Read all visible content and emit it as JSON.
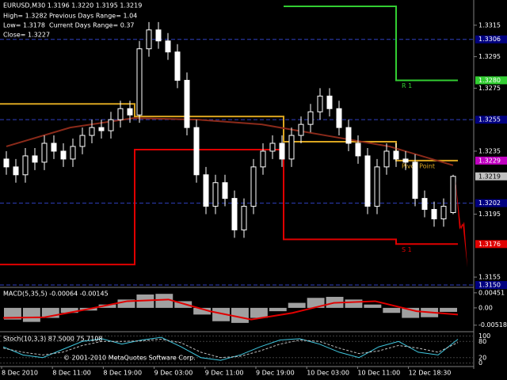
{
  "chart_data": {
    "type": "candlestick",
    "symbol_header": "EURUSD,M30  1.3196 1.3220 1.3195 1.3219",
    "info": [
      "High= 1.3282",
      "Low= 1.3178",
      "Close= 1.3227"
    ],
    "info_right": [
      "Previous Days Range= 1.04",
      "Current Days Range= 0.37"
    ],
    "open": [
      1.323,
      1.3225,
      1.322,
      1.3232,
      1.3228,
      1.324,
      1.3235,
      1.323,
      1.3238,
      1.3245,
      1.325,
      1.3248,
      1.3255,
      1.3262,
      1.3258,
      1.33,
      1.3312,
      1.3305,
      1.3298,
      1.328,
      1.325,
      1.322,
      1.32,
      1.3215,
      1.3205,
      1.3185,
      1.32,
      1.3225,
      1.3235,
      1.324,
      1.323,
      1.3245,
      1.3252,
      1.326,
      1.327,
      1.3262,
      1.325,
      1.324,
      1.3232,
      1.32,
      1.3225,
      1.3235,
      1.323,
      1.3228,
      1.3205,
      1.3198,
      1.3192,
      1.3196
    ],
    "high": [
      1.3235,
      1.323,
      1.3237,
      1.3237,
      1.3245,
      1.3245,
      1.324,
      1.3243,
      1.325,
      1.3255,
      1.3255,
      1.326,
      1.3267,
      1.3267,
      1.3305,
      1.3317,
      1.3317,
      1.331,
      1.3303,
      1.3285,
      1.3255,
      1.3225,
      1.322,
      1.322,
      1.321,
      1.3205,
      1.323,
      1.324,
      1.3245,
      1.3245,
      1.325,
      1.3257,
      1.3265,
      1.3275,
      1.3275,
      1.3267,
      1.3255,
      1.3245,
      1.3237,
      1.323,
      1.324,
      1.324,
      1.3235,
      1.3233,
      1.321,
      1.3203,
      1.3205,
      1.322
    ],
    "low": [
      1.322,
      1.3215,
      1.3215,
      1.3223,
      1.3223,
      1.323,
      1.3225,
      1.3225,
      1.3233,
      1.324,
      1.3243,
      1.3243,
      1.325,
      1.3253,
      1.3253,
      1.3295,
      1.33,
      1.3293,
      1.3275,
      1.3245,
      1.3215,
      1.3195,
      1.3195,
      1.32,
      1.318,
      1.318,
      1.3195,
      1.322,
      1.323,
      1.3225,
      1.3225,
      1.324,
      1.3247,
      1.3255,
      1.3257,
      1.3245,
      1.3235,
      1.3227,
      1.3195,
      1.3195,
      1.322,
      1.3225,
      1.3223,
      1.32,
      1.3193,
      1.3187,
      1.3187,
      1.3195
    ],
    "close": [
      1.3225,
      1.322,
      1.3232,
      1.3228,
      1.324,
      1.3235,
      1.323,
      1.3238,
      1.3245,
      1.325,
      1.3248,
      1.3255,
      1.3262,
      1.3258,
      1.33,
      1.3312,
      1.3305,
      1.3298,
      1.328,
      1.325,
      1.322,
      1.32,
      1.3215,
      1.3205,
      1.3185,
      1.32,
      1.3225,
      1.3235,
      1.324,
      1.323,
      1.3245,
      1.3252,
      1.326,
      1.327,
      1.3262,
      1.325,
      1.324,
      1.3232,
      1.32,
      1.3225,
      1.3235,
      1.323,
      1.3228,
      1.3205,
      1.3198,
      1.3192,
      1.32,
      1.3219
    ],
    "ma": {
      "color": "#8b2a1a",
      "values": [
        1.3238,
        1.325,
        1.3256,
        1.3255,
        1.3252,
        1.3245,
        1.3238,
        1.3226
      ]
    },
    "pivot_levels": [
      {
        "name": "R 1",
        "color": "#32cd32",
        "values": [
          null,
          null,
          1.3327,
          1.328
        ]
      },
      {
        "name": "Pivot Point",
        "color": "#daa520",
        "values": [
          1.3265,
          1.3257,
          1.3241,
          1.3229
        ]
      },
      {
        "name": "S 1",
        "color": "#e00000",
        "values": [
          1.3163,
          1.3236,
          1.3179,
          1.3176
        ]
      }
    ],
    "ylim": [
      1.3149,
      1.3331
    ],
    "yticks": [
      1.3315,
      1.3295,
      1.3275,
      1.3235,
      1.3195,
      1.3155
    ],
    "price_labels": [
      {
        "value": 1.3306,
        "label": "1.3306",
        "color": "#000080",
        "line": true
      },
      {
        "value": 1.328,
        "label": "1.3280",
        "color": "#32cd32",
        "line": false
      },
      {
        "value": 1.3255,
        "label": "1.3255",
        "color": "#000080",
        "line": true
      },
      {
        "value": 1.3229,
        "label": "1.3229",
        "color": "#c000c0",
        "line": false
      },
      {
        "value": 1.3219,
        "label": "1.3219",
        "color": "#c0c0c0",
        "line": false
      },
      {
        "value": 1.3202,
        "label": "1.3202",
        "color": "#000080",
        "line": true
      },
      {
        "value": 1.3176,
        "label": "1.3176",
        "color": "#e00000",
        "line": false
      },
      {
        "value": 1.315,
        "label": "1.3150",
        "color": "#000080",
        "line": true
      }
    ],
    "x_labels": [
      "8 Dec 2010",
      "8 Dec 11:00",
      "8 Dec 19:00",
      "9 Dec 03:00",
      "9 Dec 11:00",
      "9 Dec 19:00",
      "10 Dec 03:00",
      "10 Dec 11:00",
      "12 Dec 18:30"
    ],
    "macd": {
      "title": "MACD(5,35,5) -0.00064 -0.00145",
      "hist": [
        -0.0035,
        -0.0042,
        -0.003,
        -0.0015,
        -0.0008,
        0.001,
        0.0025,
        0.004,
        0.0042,
        0.002,
        -0.002,
        -0.004,
        -0.0045,
        -0.003,
        -0.001,
        0.0015,
        0.003,
        0.0033,
        0.0025,
        0.001,
        -0.0015,
        -0.003,
        -0.0028,
        -0.0012
      ],
      "signal": [
        -0.003,
        -0.0028,
        -0.0005,
        0.002,
        0.0025,
        -0.001,
        -0.0035,
        -0.0015,
        0.0015,
        0.002,
        -0.001,
        -0.002
      ],
      "ylim": [
        -0.0069,
        0.0059
      ],
      "yticks": [
        0.00451,
        {
          "value": 0,
          "label": "0.00"
        },
        -0.00518
      ]
    },
    "stoch": {
      "title": "Stoch(10,3,3) 87.5000 75.7108",
      "main": [
        60,
        30,
        20,
        50,
        80,
        90,
        70,
        85,
        95,
        60,
        20,
        10,
        30,
        60,
        85,
        90,
        70,
        40,
        20,
        60,
        80,
        40,
        30,
        88
      ],
      "signal": [
        55,
        40,
        30,
        40,
        65,
        80,
        80,
        82,
        88,
        75,
        40,
        20,
        25,
        45,
        70,
        85,
        80,
        55,
        35,
        45,
        65,
        55,
        40,
        76
      ],
      "ylim": [
        -10,
        110
      ],
      "yticks": [
        100,
        80,
        20,
        0
      ]
    },
    "copyright": "© 2001-2010 MetaQuotes Software Corp."
  }
}
